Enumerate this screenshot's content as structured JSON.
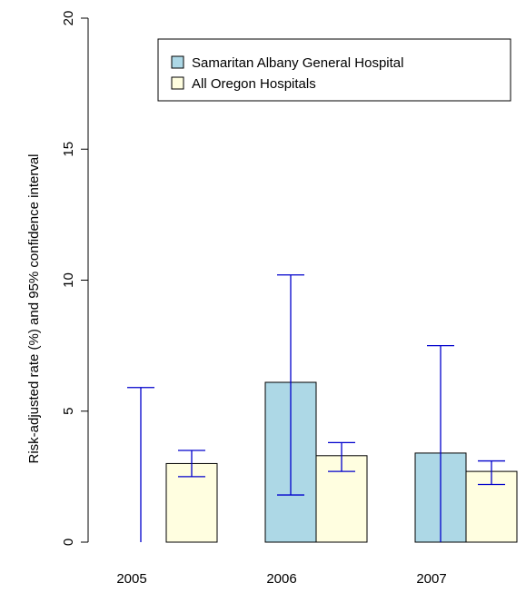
{
  "chart_data": {
    "type": "bar",
    "title": "",
    "xlabel": "",
    "ylabel": "Risk-adjusted rate (%) and 95% confidence interval",
    "ylim": [
      0,
      20
    ],
    "yticks": [
      "0",
      "5",
      "10",
      "15",
      "20"
    ],
    "categories": [
      "2005",
      "2006",
      "2007"
    ],
    "legend_position": "top-right",
    "grid": false,
    "series": [
      {
        "name": "Samaritan Albany General Hospital",
        "color": "#add8e6",
        "values": [
          0,
          6.1,
          3.4
        ],
        "ci_low": [
          0,
          1.8,
          0
        ],
        "ci_high": [
          5.9,
          10.2,
          7.5
        ]
      },
      {
        "name": "All Oregon Hospitals",
        "color": "#fffee0",
        "values": [
          3.0,
          3.3,
          2.7
        ],
        "ci_low": [
          2.5,
          2.7,
          2.2
        ],
        "ci_high": [
          3.5,
          3.8,
          3.1
        ]
      }
    ],
    "error_bar_color": "#0000cc"
  }
}
